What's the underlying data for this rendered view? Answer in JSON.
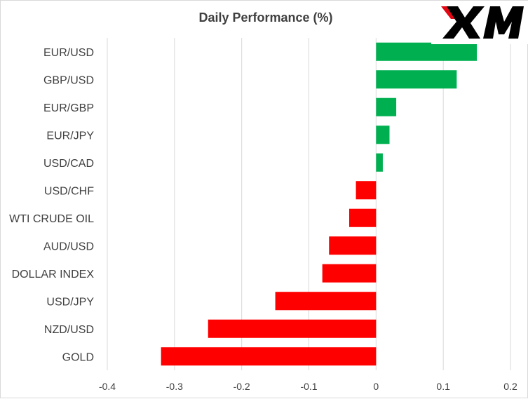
{
  "chart_data": {
    "type": "bar",
    "orientation": "horizontal",
    "title": "Daily Performance (%)",
    "xlabel": "",
    "ylabel": "",
    "categories": [
      "EUR/USD",
      "GBP/USD",
      "EUR/GBP",
      "EUR/JPY",
      "USD/CAD",
      "USD/CHF",
      "WTI CRUDE OIL",
      "AUD/USD",
      "DOLLAR INDEX",
      "USD/JPY",
      "NZD/USD",
      "GOLD"
    ],
    "values": [
      0.15,
      0.12,
      0.03,
      0.02,
      0.01,
      -0.03,
      -0.04,
      -0.07,
      -0.08,
      -0.15,
      -0.25,
      -0.32
    ],
    "xlim": [
      -0.4,
      0.2
    ],
    "ticks": [
      -0.4,
      -0.3,
      -0.2,
      -0.1,
      0,
      0.1,
      0.2
    ],
    "tick_labels": [
      "-0.4",
      "-0.3",
      "-0.2",
      "-0.1",
      "0",
      "0.1",
      "0.2"
    ],
    "grid": true,
    "legend": "none",
    "colors": {
      "positive": "#00b050",
      "negative": "#ff0000",
      "grid": "#d9d9d9",
      "text": "#404040"
    }
  },
  "logo": {
    "text": "XM",
    "color": "#000000",
    "accent": "#e30613"
  }
}
